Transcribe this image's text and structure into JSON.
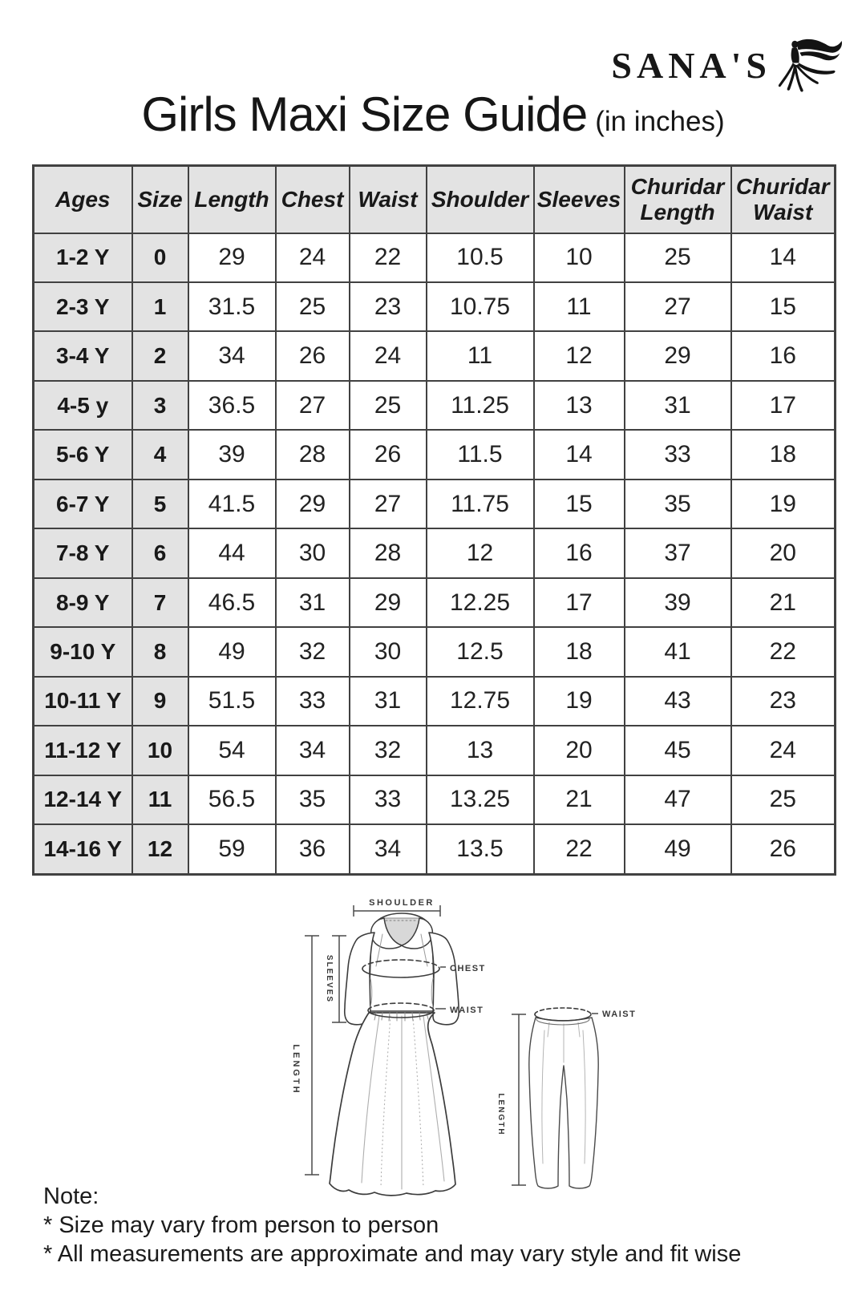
{
  "brand": {
    "name": "SANA'S"
  },
  "title": {
    "main": "Girls Maxi Size Guide",
    "suffix": "(in inches)"
  },
  "table": {
    "headers": [
      "Ages",
      "Size",
      "Length",
      "Chest",
      "Waist",
      "Shoulder",
      "Sleeves",
      "Churidar Length",
      "Churidar Waist"
    ],
    "rows": [
      [
        "1-2 Y",
        "0",
        "29",
        "24",
        "22",
        "10.5",
        "10",
        "25",
        "14"
      ],
      [
        "2-3 Y",
        "1",
        "31.5",
        "25",
        "23",
        "10.75",
        "11",
        "27",
        "15"
      ],
      [
        "3-4 Y",
        "2",
        "34",
        "26",
        "24",
        "11",
        "12",
        "29",
        "16"
      ],
      [
        "4-5 y",
        "3",
        "36.5",
        "27",
        "25",
        "11.25",
        "13",
        "31",
        "17"
      ],
      [
        "5-6 Y",
        "4",
        "39",
        "28",
        "26",
        "11.5",
        "14",
        "33",
        "18"
      ],
      [
        "6-7 Y",
        "5",
        "41.5",
        "29",
        "27",
        "11.75",
        "15",
        "35",
        "19"
      ],
      [
        "7-8 Y",
        "6",
        "44",
        "30",
        "28",
        "12",
        "16",
        "37",
        "20"
      ],
      [
        "8-9 Y",
        "7",
        "46.5",
        "31",
        "29",
        "12.25",
        "17",
        "39",
        "21"
      ],
      [
        "9-10 Y",
        "8",
        "49",
        "32",
        "30",
        "12.5",
        "18",
        "41",
        "22"
      ],
      [
        "10-11 Y",
        "9",
        "51.5",
        "33",
        "31",
        "12.75",
        "19",
        "43",
        "23"
      ],
      [
        "11-12 Y",
        "10",
        "54",
        "34",
        "32",
        "13",
        "20",
        "45",
        "24"
      ],
      [
        "12-14 Y",
        "11",
        "56.5",
        "35",
        "33",
        "13.25",
        "21",
        "47",
        "25"
      ],
      [
        "14-16 Y",
        "12",
        "59",
        "36",
        "34",
        "13.5",
        "22",
        "49",
        "26"
      ]
    ]
  },
  "diagram": {
    "dress": {
      "shoulder_label": "SHOULDER",
      "sleeves_label": "SLEEVES",
      "chest_label": "CHEST",
      "waist_label": "WAIST",
      "length_label": "LENGTH"
    },
    "pants": {
      "waist_label": "WAIST",
      "length_label": "LENGTH"
    }
  },
  "notes": {
    "heading": "Note:",
    "items": [
      "* Size may vary from person to person",
      "* All measurements are approximate and may vary style and fit wise"
    ]
  },
  "colors": {
    "header_bg": "#e3e3e3",
    "border": "#414141",
    "text": "#1c1c1c",
    "sketch_line": "#3c3c3c",
    "sketch_fill": "#d8d8d8"
  }
}
